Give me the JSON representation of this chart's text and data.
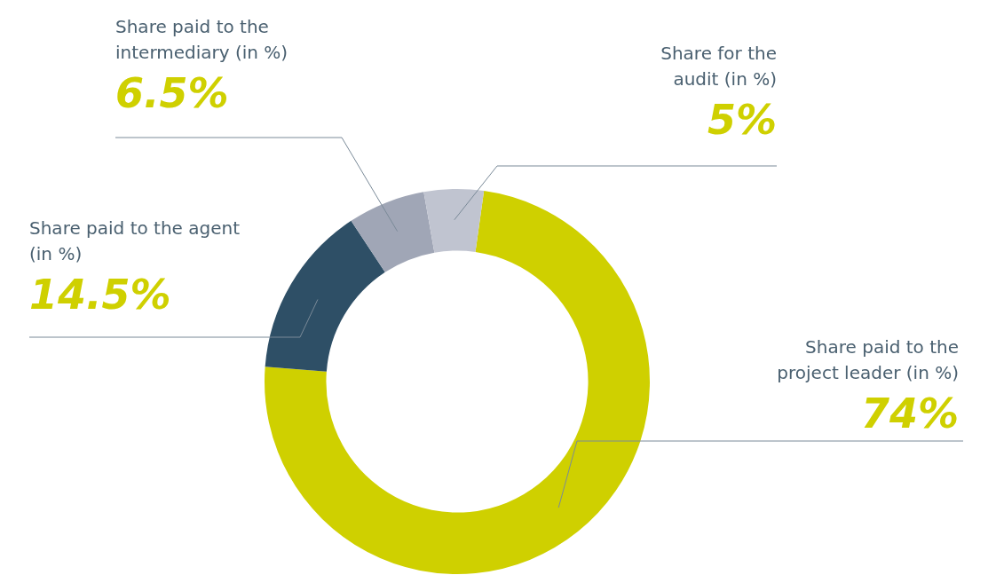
{
  "chart_data": {
    "type": "donut",
    "categories": [
      "Share paid to the project leader (in %)",
      "Share paid to the agent (in %)",
      "Share paid to the intermediary (in %)",
      "Share for the audit (in %)"
    ],
    "values": [
      74,
      14.5,
      6.5,
      5
    ],
    "colors": [
      "#cfd000",
      "#2e4f66",
      "#a0a6b6",
      "#c0c4d0"
    ],
    "value_labels": [
      "74%",
      "14.5%",
      "6.5%",
      "5%"
    ],
    "legend": false
  }
}
